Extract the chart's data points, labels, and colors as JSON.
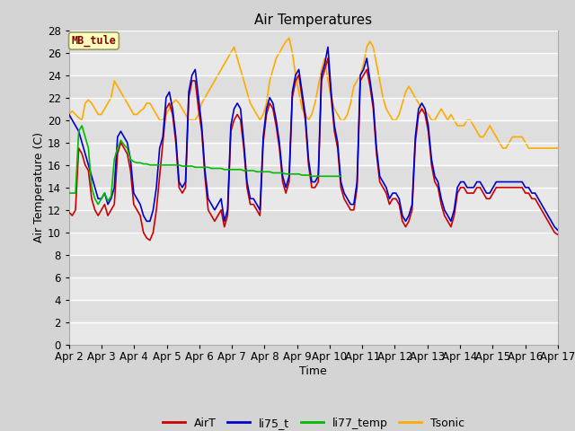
{
  "title": "Air Temperatures",
  "xlabel": "Time",
  "ylabel": "Air Temperature (C)",
  "ylim": [
    0,
    28
  ],
  "site_label": "MB_tule",
  "colors": {
    "AirT": "#cc0000",
    "li75_t": "#0000cc",
    "li77_temp": "#00bb00",
    "Tsonic": "#ffaa00"
  },
  "x_start": 2,
  "x_end": 17,
  "x_ticks": [
    2,
    3,
    4,
    5,
    6,
    7,
    8,
    9,
    10,
    11,
    12,
    13,
    14,
    15,
    16,
    17
  ],
  "x_tick_labels": [
    "Apr 2",
    "Apr 3",
    "Apr 4",
    "Apr 5",
    "Apr 6",
    "Apr 7",
    "Apr 8",
    "Apr 9",
    "Apr 10",
    "Apr 11",
    "Apr 12",
    "Apr 13",
    "Apr 14",
    "Apr 15",
    "Apr 16",
    "Apr 17"
  ],
  "AirT": [
    11.8,
    11.5,
    12.0,
    17.5,
    17.0,
    16.0,
    15.5,
    13.0,
    12.0,
    11.5,
    12.0,
    12.5,
    11.5,
    12.0,
    12.5,
    17.0,
    18.0,
    17.5,
    17.0,
    15.5,
    12.5,
    12.0,
    11.5,
    10.0,
    9.5,
    9.3,
    10.0,
    12.0,
    15.0,
    18.0,
    21.0,
    21.5,
    20.5,
    18.0,
    14.0,
    13.5,
    14.0,
    22.0,
    23.5,
    23.5,
    21.0,
    19.0,
    15.0,
    12.0,
    11.5,
    11.0,
    11.5,
    12.0,
    10.5,
    11.5,
    19.0,
    20.0,
    20.5,
    20.0,
    17.5,
    14.0,
    12.5,
    12.5,
    12.0,
    11.5,
    18.0,
    20.5,
    21.5,
    21.0,
    19.5,
    17.5,
    14.5,
    13.5,
    14.5,
    22.0,
    23.5,
    24.0,
    22.0,
    20.0,
    16.0,
    14.0,
    14.0,
    14.5,
    23.5,
    24.5,
    25.5,
    22.0,
    19.0,
    17.5,
    14.0,
    13.0,
    12.5,
    12.0,
    12.0,
    14.0,
    23.5,
    24.0,
    24.5,
    23.0,
    21.0,
    17.0,
    14.5,
    14.0,
    13.5,
    12.5,
    13.0,
    13.0,
    12.5,
    11.0,
    10.5,
    11.0,
    12.0,
    18.0,
    20.5,
    21.0,
    20.5,
    19.0,
    16.0,
    14.5,
    14.0,
    12.5,
    11.5,
    11.0,
    10.5,
    11.5,
    13.5,
    14.0,
    14.0,
    13.5,
    13.5,
    13.5,
    14.0,
    14.0,
    13.5,
    13.0,
    13.0,
    13.5,
    14.0,
    14.0,
    14.0,
    14.0,
    14.0,
    14.0,
    14.0,
    14.0,
    14.0,
    13.5,
    13.5,
    13.0,
    13.0,
    12.5,
    12.0,
    11.5,
    11.0,
    10.5,
    10.0,
    9.8
  ],
  "li75_t": [
    20.5,
    20.0,
    19.5,
    19.0,
    18.0,
    17.0,
    16.0,
    15.0,
    14.0,
    13.0,
    13.0,
    13.5,
    12.5,
    13.0,
    14.0,
    18.5,
    19.0,
    18.5,
    18.0,
    16.5,
    13.5,
    13.0,
    12.5,
    11.5,
    11.0,
    11.0,
    12.0,
    14.0,
    17.5,
    18.5,
    22.0,
    22.5,
    21.0,
    18.5,
    14.5,
    14.0,
    14.5,
    22.5,
    24.0,
    24.5,
    22.0,
    19.5,
    15.5,
    13.0,
    12.5,
    12.0,
    12.5,
    13.0,
    11.0,
    12.0,
    19.5,
    21.0,
    21.5,
    21.0,
    18.0,
    14.5,
    13.0,
    13.0,
    12.5,
    12.0,
    18.5,
    21.0,
    22.0,
    21.5,
    20.0,
    18.0,
    15.0,
    14.0,
    15.0,
    22.5,
    24.0,
    24.5,
    22.5,
    20.5,
    16.5,
    14.5,
    14.5,
    15.0,
    24.0,
    25.0,
    26.5,
    22.5,
    19.5,
    18.0,
    14.5,
    13.5,
    13.0,
    12.5,
    12.5,
    14.5,
    24.0,
    24.5,
    25.5,
    23.5,
    21.5,
    17.5,
    15.0,
    14.5,
    14.0,
    13.0,
    13.5,
    13.5,
    13.0,
    11.5,
    11.0,
    11.5,
    12.5,
    18.5,
    21.0,
    21.5,
    21.0,
    19.5,
    16.5,
    15.0,
    14.5,
    13.0,
    12.0,
    11.5,
    11.0,
    12.0,
    14.0,
    14.5,
    14.5,
    14.0,
    14.0,
    14.0,
    14.5,
    14.5,
    14.0,
    13.5,
    13.5,
    14.0,
    14.5,
    14.5,
    14.5,
    14.5,
    14.5,
    14.5,
    14.5,
    14.5,
    14.5,
    14.0,
    14.0,
    13.5,
    13.5,
    13.0,
    12.5,
    12.0,
    11.5,
    11.0,
    10.5,
    10.2
  ],
  "li77_temp": [
    13.5,
    13.5,
    13.5,
    19.0,
    19.5,
    18.5,
    17.5,
    14.0,
    13.0,
    12.5,
    13.0,
    13.5,
    12.8,
    13.2,
    16.5,
    17.5,
    18.2,
    17.8,
    17.5,
    16.5,
    16.3,
    16.2,
    16.2,
    16.1,
    16.1,
    16.0,
    16.0,
    16.0,
    16.0,
    16.0,
    16.0,
    16.0,
    16.0,
    16.0,
    16.0,
    15.9,
    15.9,
    15.9,
    15.9,
    15.8,
    15.8,
    15.8,
    15.8,
    15.8,
    15.7,
    15.7,
    15.7,
    15.7,
    15.6,
    15.6,
    15.6,
    15.6,
    15.6,
    15.6,
    15.5,
    15.5,
    15.5,
    15.5,
    15.4,
    15.4,
    15.4,
    15.4,
    15.4,
    15.3,
    15.3,
    15.3,
    15.3,
    15.2,
    15.2,
    15.2,
    15.2,
    15.2,
    15.1,
    15.1,
    15.1,
    15.0,
    15.0,
    15.0,
    15.0,
    15.0,
    15.0,
    15.0,
    15.0,
    15.0,
    15.0
  ],
  "Tsonic": [
    20.5,
    20.8,
    20.5,
    20.2,
    20.0,
    21.5,
    21.8,
    21.5,
    21.0,
    20.5,
    20.5,
    21.0,
    21.5,
    22.0,
    23.5,
    23.0,
    22.5,
    22.0,
    21.5,
    21.0,
    20.5,
    20.5,
    20.8,
    21.0,
    21.5,
    21.5,
    21.0,
    20.5,
    20.0,
    20.0,
    20.5,
    21.0,
    21.5,
    21.8,
    21.5,
    21.0,
    20.5,
    20.0,
    20.0,
    20.0,
    20.5,
    21.5,
    22.0,
    22.5,
    23.0,
    23.5,
    24.0,
    24.5,
    25.0,
    25.5,
    26.0,
    26.5,
    25.5,
    24.5,
    23.5,
    22.5,
    21.5,
    21.0,
    20.5,
    20.0,
    20.5,
    21.5,
    23.5,
    24.5,
    25.5,
    26.0,
    26.5,
    27.0,
    27.3,
    26.0,
    24.0,
    22.5,
    21.0,
    20.5,
    20.0,
    20.5,
    21.5,
    23.0,
    24.5,
    25.5,
    23.5,
    22.0,
    21.0,
    20.5,
    20.0,
    20.0,
    20.5,
    21.5,
    23.0,
    23.5,
    24.0,
    25.0,
    26.5,
    27.0,
    26.5,
    25.0,
    23.5,
    22.0,
    21.0,
    20.5,
    20.0,
    20.0,
    20.5,
    21.5,
    22.5,
    23.0,
    22.5,
    22.0,
    21.5,
    21.0,
    20.8,
    20.5,
    20.0,
    20.0,
    20.5,
    21.0,
    20.5,
    20.0,
    20.5,
    20.0,
    19.5,
    19.5,
    19.5,
    20.0,
    20.0,
    19.5,
    19.0,
    18.5,
    18.5,
    19.0,
    19.5,
    19.0,
    18.5,
    18.0,
    17.5,
    17.5,
    18.0,
    18.5,
    18.5,
    18.5,
    18.5,
    18.0,
    17.5,
    17.5,
    17.5,
    17.5,
    17.5,
    17.5,
    17.5,
    17.5,
    17.5,
    17.5
  ]
}
